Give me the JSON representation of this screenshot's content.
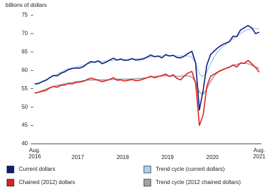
{
  "chart_data": {
    "type": "line",
    "y_label": "billions of dollars",
    "categories": [
      "Aug. 2016",
      null,
      null,
      null,
      null,
      null,
      null,
      null,
      null,
      null,
      null,
      "2017",
      null,
      null,
      null,
      null,
      null,
      null,
      null,
      null,
      null,
      null,
      null,
      "2018",
      null,
      null,
      null,
      null,
      null,
      null,
      null,
      null,
      null,
      null,
      null,
      "2019",
      null,
      null,
      null,
      null,
      null,
      null,
      null,
      null,
      null,
      null,
      null,
      "2020",
      null,
      null,
      null,
      null,
      null,
      null,
      null,
      null,
      null,
      null,
      null,
      null,
      "Aug. 2021"
    ],
    "ylim": [
      40,
      75
    ],
    "yticks": [
      40,
      45,
      50,
      55,
      60,
      65,
      70,
      75
    ],
    "grid": false,
    "series": [
      {
        "name": "Current dollars",
        "color": "#0f1d7a",
        "values": [
          56.3,
          56.4,
          56.9,
          57.3,
          58.0,
          58.6,
          58.5,
          59.2,
          59.6,
          60.2,
          60.5,
          60.6,
          60.6,
          61.0,
          61.8,
          62.4,
          62.2,
          62.6,
          61.8,
          62.2,
          62.8,
          63.3,
          62.8,
          63.1,
          62.7,
          62.8,
          63.2,
          62.8,
          62.9,
          63.1,
          63.6,
          64.2,
          63.7,
          63.9,
          63.4,
          64.3,
          63.9,
          64.1,
          63.5,
          63.4,
          63.9,
          64.6,
          65.2,
          62.0,
          49.2,
          54.5,
          61.5,
          64.3,
          65.3,
          66.2,
          66.9,
          67.4,
          67.8,
          69.3,
          69.2,
          71.0,
          71.6,
          72.2,
          71.6,
          70.0,
          70.4
        ]
      },
      {
        "name": "Trend cycle (current dollars)",
        "color": "#a9d3f2",
        "values": [
          56.2,
          56.6,
          57.0,
          57.5,
          58.0,
          58.5,
          59.0,
          59.5,
          60.0,
          60.4,
          60.7,
          60.9,
          61.1,
          61.4,
          61.7,
          62.0,
          62.2,
          62.3,
          62.4,
          62.5,
          62.6,
          62.7,
          62.8,
          62.9,
          62.9,
          63.0,
          63.0,
          63.1,
          63.2,
          63.3,
          63.5,
          63.7,
          63.8,
          63.9,
          63.9,
          64.0,
          64.0,
          64.0,
          63.9,
          63.9,
          63.9,
          63.9,
          63.6,
          62.0,
          59.0,
          58.3,
          59.5,
          61.8,
          63.8,
          65.2,
          66.2,
          67.0,
          67.8,
          68.5,
          69.3,
          70.0,
          70.7,
          71.2,
          71.4,
          71.4,
          71.3
        ]
      },
      {
        "name": "Chained (2012) dollars",
        "color": "#e0201e",
        "values": [
          53.8,
          54.0,
          54.3,
          54.5,
          55.2,
          55.6,
          55.4,
          55.9,
          56.0,
          56.4,
          56.3,
          56.7,
          56.8,
          57.0,
          57.5,
          57.9,
          57.6,
          57.3,
          56.9,
          57.2,
          57.5,
          58.0,
          57.3,
          57.4,
          57.1,
          57.3,
          57.5,
          57.2,
          57.3,
          57.6,
          58.0,
          58.4,
          58.0,
          58.3,
          58.6,
          59.0,
          58.3,
          58.8,
          57.8,
          57.4,
          58.5,
          59.3,
          59.7,
          56.5,
          45.0,
          47.8,
          55.7,
          58.4,
          59.0,
          59.6,
          60.1,
          60.5,
          60.8,
          61.5,
          60.9,
          62.0,
          61.9,
          62.7,
          61.8,
          60.8,
          59.5
        ]
      },
      {
        "name": "Trend cycle (2012 chained dollars)",
        "color": "#a3a3a3",
        "values": [
          53.8,
          54.1,
          54.5,
          54.9,
          55.3,
          55.6,
          55.9,
          56.1,
          56.3,
          56.5,
          56.7,
          56.9,
          57.0,
          57.2,
          57.3,
          57.4,
          57.4,
          57.4,
          57.4,
          57.4,
          57.5,
          57.5,
          57.6,
          57.6,
          57.6,
          57.6,
          57.7,
          57.7,
          57.8,
          57.9,
          58.0,
          58.2,
          58.3,
          58.4,
          58.5,
          58.5,
          58.5,
          58.5,
          58.4,
          58.4,
          58.5,
          58.5,
          58.2,
          56.8,
          54.0,
          53.5,
          55.0,
          57.0,
          58.5,
          59.5,
          60.0,
          60.5,
          60.9,
          61.3,
          61.6,
          61.9,
          62.0,
          61.8,
          61.4,
          60.9,
          60.5
        ]
      }
    ]
  }
}
